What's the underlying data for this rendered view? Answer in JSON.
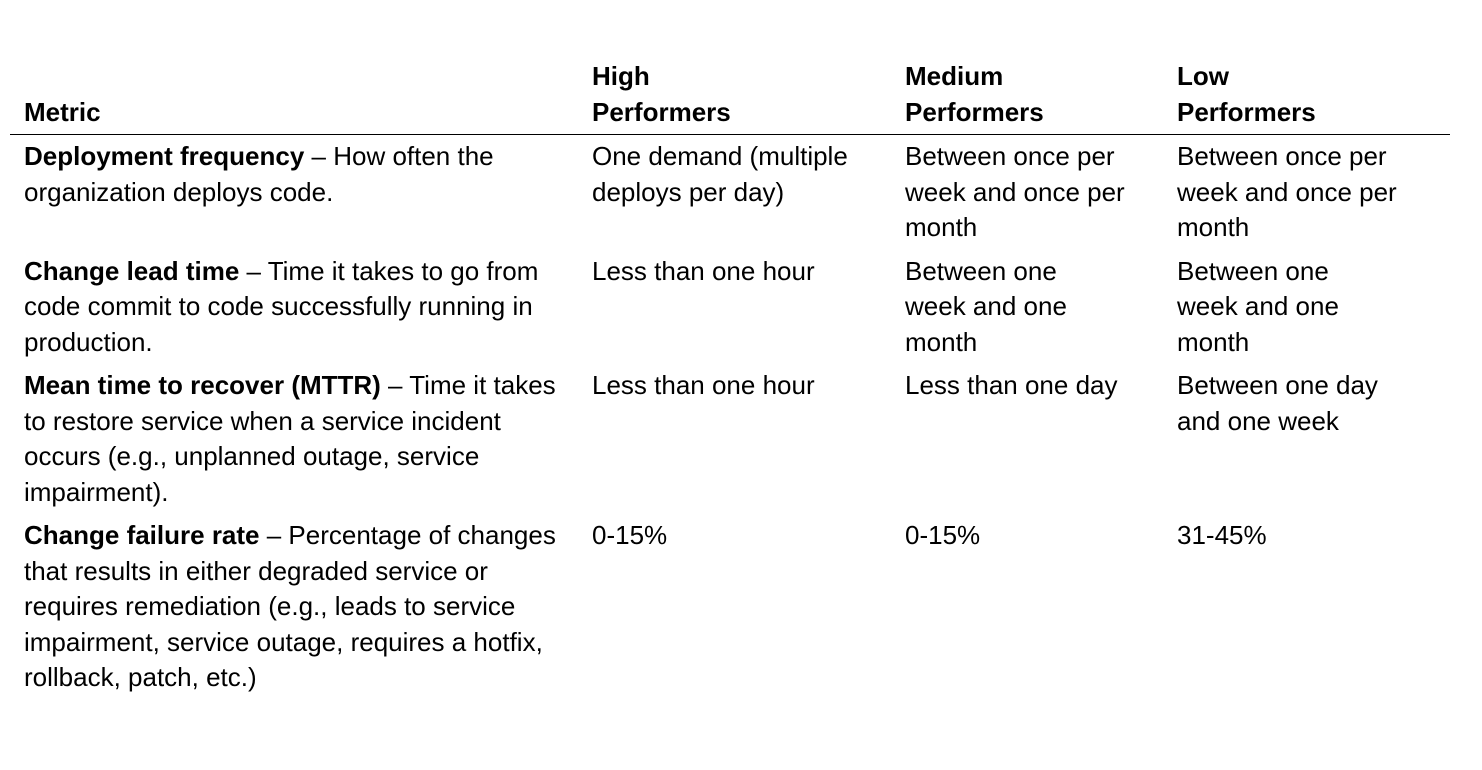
{
  "headers": {
    "metric": "Metric",
    "high": [
      "High",
      "Performers"
    ],
    "medium": [
      "Medium",
      "Performers"
    ],
    "low": [
      "Low",
      "Performers"
    ]
  },
  "rows": [
    {
      "name": "Deployment frequency",
      "description": " – How often the organization deploys code.",
      "high": "One demand (multiple deploys per day)",
      "medium": "Between once per week and once per month",
      "low": "Between once per week and once per month"
    },
    {
      "name": "Change lead time",
      "description": " – Time it takes to go from code commit to code successfully running in production.",
      "high": "Less than one hour",
      "medium": "Between one week and one month",
      "low": "Between one week and one month"
    },
    {
      "name": "Mean time to recover (MTTR)",
      "description": " – Time it takes to restore service when a service incident occurs (e.g., unplanned outage, service impairment).",
      "high": "Less than one hour",
      "medium": "Less than one day",
      "low": "Between one day and one week"
    },
    {
      "name": "Change failure rate",
      "description": " – Percentage of changes that results in either degraded service or requires remediation (e.g., leads to service impairment, service outage, requires a hotfix, rollback, patch, etc.)",
      "high": "0-15%",
      "medium": "0-15%",
      "low": "31-45%"
    }
  ]
}
